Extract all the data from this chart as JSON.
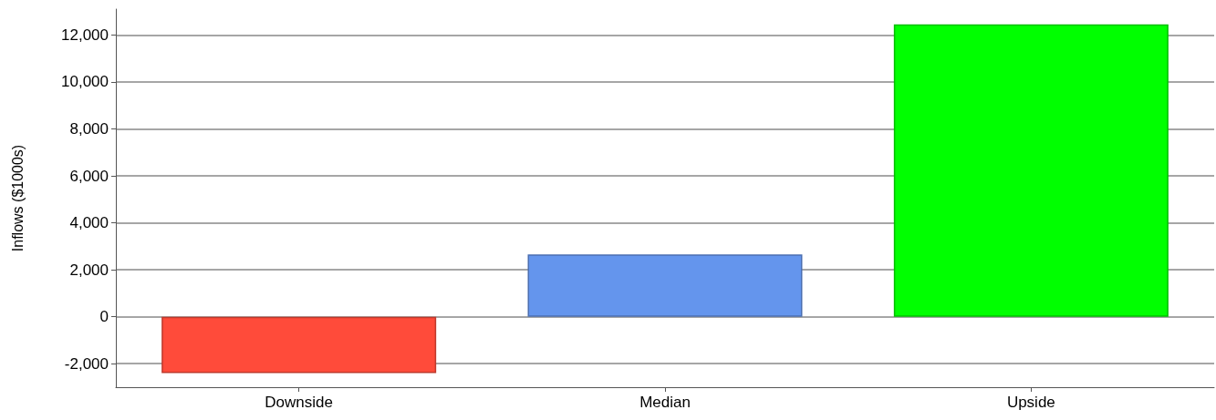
{
  "chart_data": {
    "type": "bar",
    "ylabel": "Inflows ($1000s)",
    "categories": [
      "Downside",
      "Median",
      "Upside"
    ],
    "values": [
      -2400,
      2650,
      12450
    ],
    "colors": [
      "#ff4b3a",
      "#6495ed",
      "#00ff00"
    ],
    "ylim": [
      -3000,
      13100
    ],
    "yticks": [
      {
        "value": -2000,
        "label": "-2,000"
      },
      0,
      {
        "value": 2000,
        "label": "2,000"
      },
      {
        "value": 4000,
        "label": "4,000"
      },
      {
        "value": 6000,
        "label": "6,000"
      },
      {
        "value": 8000,
        "label": "8,000"
      },
      {
        "value": 10000,
        "label": "10,000"
      },
      {
        "value": 12000,
        "label": "12,000"
      }
    ],
    "grid": "y"
  }
}
